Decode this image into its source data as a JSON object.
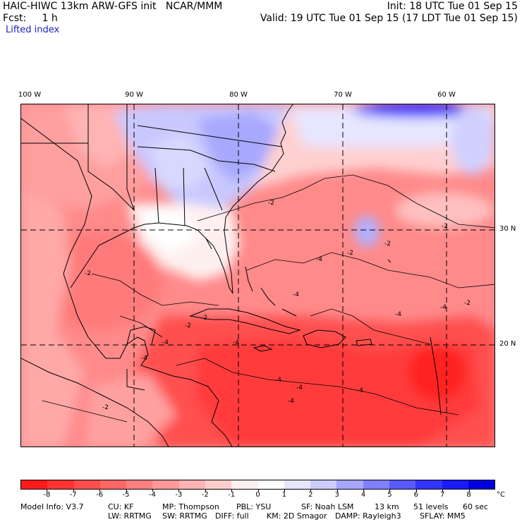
{
  "header": {
    "model_line": "HAIC-HIWC 13km ARW-GFS init   NCAR/MMM",
    "init_line": "Init: 18 UTC Tue 01 Sep 15",
    "fcst_line": "Fcst:     1 h",
    "valid_line": "Valid: 19 UTC Tue 01 Sep 15 (17 LDT Tue 01 Sep 15)",
    "field_name": "Lifted index"
  },
  "map": {
    "lon_labels": [
      "100 W",
      "90 W",
      "80 W",
      "70 W",
      "60 W"
    ],
    "lat_labels": [
      "30 N",
      "20 N"
    ],
    "contour_labels": [
      "-2",
      "-2",
      "-2",
      "-2",
      "-2",
      "-2",
      "-2",
      "-4",
      "-4",
      "-4",
      "-4",
      "-4",
      "-4",
      "-4",
      "-4",
      "-4",
      "-2",
      "-2",
      "-4",
      "-4"
    ]
  },
  "colorbar": {
    "unit": "°C",
    "labels": [
      "-8",
      "-7",
      "-6",
      "-5",
      "-4",
      "-3",
      "-2",
      "-1",
      "0",
      "1",
      "2",
      "3",
      "4",
      "5",
      "6",
      "7",
      "8"
    ],
    "colors": [
      "#ff1a1a",
      "#ff3333",
      "#ff4d4d",
      "#ff6666",
      "#ff8080",
      "#ff9999",
      "#ffb3b3",
      "#ffcccc",
      "#fff0f0",
      "#ffffff",
      "#e6e6ff",
      "#ccccff",
      "#a6a6ff",
      "#8080ff",
      "#5959ff",
      "#3333ff",
      "#1a1aff",
      "#0000e0"
    ]
  },
  "footer": {
    "line1": [
      "Model Info: V3.7",
      "CU: KF",
      "MP: Thompson",
      "PBL: YSU",
      "SF: Noah LSM",
      "13 km",
      "51 levels",
      "60 sec"
    ],
    "line2": [
      "LW: RRTMG",
      "SW: RRTMG",
      "DIFF: full",
      "KM: 2D Smagor",
      "DAMP: Rayleigh3",
      "SFLAY: MM5"
    ]
  }
}
